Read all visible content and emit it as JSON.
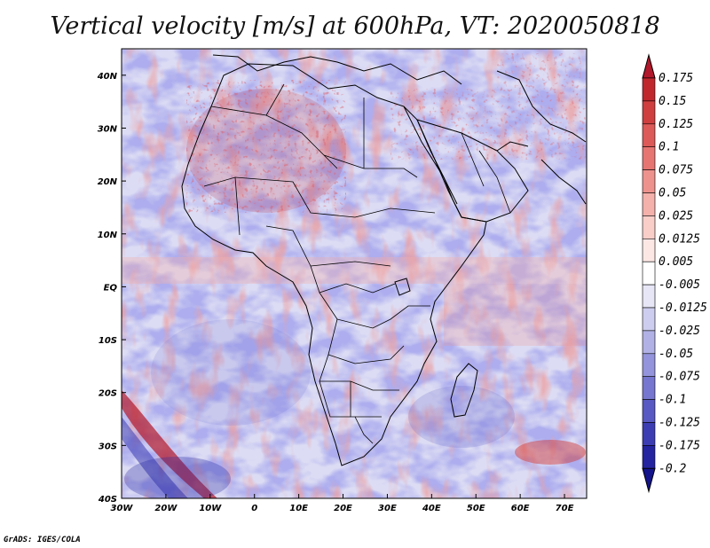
{
  "title": "Vertical velocity [m/s] at 600hPa, VT: 2020050818",
  "credit": "GrADS: IGES/COLA",
  "map": {
    "region": "Africa",
    "lon_range": [
      -30,
      75
    ],
    "lat_range": [
      -40,
      45
    ],
    "lon_ticks": [
      "30W",
      "20W",
      "10W",
      "0",
      "10E",
      "20E",
      "30E",
      "40E",
      "50E",
      "60E",
      "70E"
    ],
    "lat_ticks": [
      "40N",
      "30N",
      "20N",
      "10N",
      "EQ",
      "10S",
      "20S",
      "30S",
      "40S"
    ]
  },
  "colorbar": {
    "labels": [
      "0.175",
      "0.15",
      "0.125",
      "0.1",
      "0.075",
      "0.05",
      "0.025",
      "0.0125",
      "0.005",
      "-0.005",
      "-0.0125",
      "-0.025",
      "-0.05",
      "-0.075",
      "-0.1",
      "-0.125",
      "-0.175",
      "-0.2"
    ],
    "colors": [
      "#b2182b",
      "#c0272d",
      "#cf3f3f",
      "#dc5a58",
      "#e67572",
      "#ee928d",
      "#f4b0aa",
      "#f9cdc8",
      "#fde7e4",
      "#ffffff",
      "#e6e6f6",
      "#cdcdef",
      "#b1b1e6",
      "#9494dc",
      "#7676d0",
      "#5959c3",
      "#3d3db3",
      "#2424a0",
      "#14148c"
    ]
  }
}
